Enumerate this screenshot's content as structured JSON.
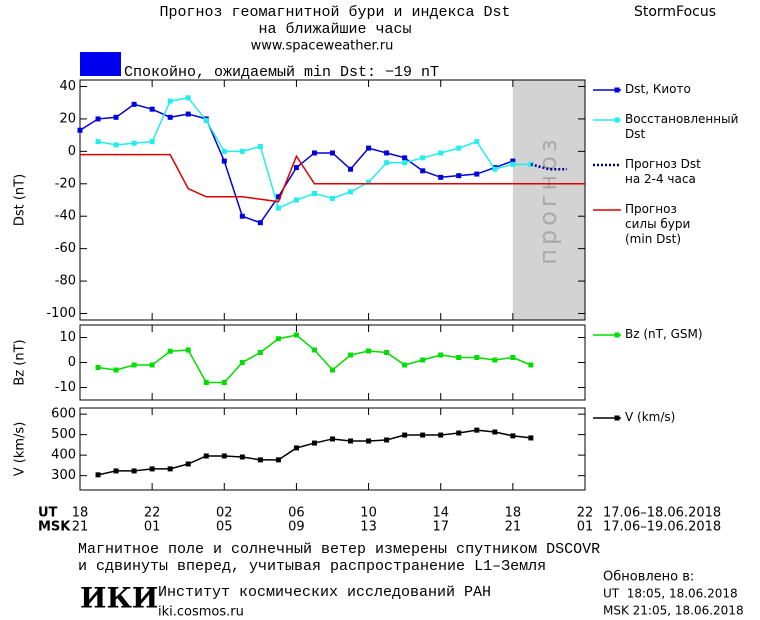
{
  "header": {
    "title": [
      "Прогноз геомагнитной бури и индекса Dst",
      "на ближайшие часы"
    ],
    "url": "www.spaceweather.ru",
    "brand": "StormFocus"
  },
  "status": {
    "color": "#0000ee",
    "text": "Спокойно, ожидаемый min Dst: −19 nT"
  },
  "chart_data": [
    {
      "type": "line",
      "ylabel": "Dst (nT)",
      "xlim": [
        18,
        46
      ],
      "ylim": [
        -104,
        44
      ],
      "yticks": [
        40,
        20,
        0,
        -20,
        -40,
        -60,
        -80,
        -100
      ],
      "legend": "right",
      "shaded_region": {
        "xlim": [
          42,
          46
        ],
        "label": "прогноз",
        "color": "#d3d3d3"
      },
      "series": [
        {
          "name": "Dst, Киото",
          "color": "#0000dd",
          "marker": "square",
          "dash": false,
          "x": [
            18,
            19,
            20,
            21,
            22,
            23,
            24,
            25,
            26,
            27,
            28,
            29,
            30,
            31,
            32,
            33,
            34,
            35,
            36,
            37,
            38,
            39,
            40,
            41,
            42
          ],
          "values": [
            13,
            20,
            21,
            29,
            26,
            21,
            23,
            20,
            -6,
            -40,
            -44,
            -28,
            -10,
            -1,
            -1,
            -11,
            2,
            -1,
            -4,
            -12,
            -16,
            -15,
            -14,
            -10,
            -6
          ]
        },
        {
          "name": "Восстановленный\nDst",
          "color": "#22eeee",
          "marker": "square",
          "dash": false,
          "x": [
            19,
            20,
            21,
            22,
            23,
            24,
            25,
            26,
            27,
            28,
            29,
            30,
            31,
            32,
            33,
            34,
            35,
            36,
            37,
            38,
            39,
            40,
            41,
            42,
            43
          ],
          "values": [
            6,
            4,
            5,
            6,
            31,
            33,
            19,
            0,
            0,
            3,
            -35,
            -30,
            -26,
            -29,
            -25,
            -19,
            -7,
            -7,
            -4,
            -1,
            2,
            6,
            -11,
            -8,
            -8
          ]
        },
        {
          "name": "Прогноз Dst\nна 2-4 часа",
          "color": "#000099",
          "marker": "none",
          "dash": true,
          "x": [
            43,
            44,
            45
          ],
          "values": [
            -8,
            -11,
            -11
          ]
        },
        {
          "name": "Прогноз\nсилы бури\n(min Dst)",
          "color": "#dd0000",
          "marker": "none",
          "dash": false,
          "x": [
            18,
            23,
            24,
            25,
            27,
            29,
            30,
            31,
            46
          ],
          "values": [
            -2,
            -2,
            -23,
            -28,
            -28,
            -31,
            -3,
            -20,
            -20
          ]
        }
      ]
    },
    {
      "type": "line",
      "ylabel": "Bz (nT)",
      "xlim": [
        18,
        46
      ],
      "ylim": [
        -15,
        15
      ],
      "yticks": [
        10,
        0,
        -10
      ],
      "legend": "right",
      "series": [
        {
          "name": "Bz (nT, GSM)",
          "color": "#00dd00",
          "marker": "square",
          "dash": false,
          "x": [
            19,
            20,
            21,
            22,
            23,
            24,
            25,
            26,
            27,
            28,
            29,
            30,
            31,
            32,
            33,
            34,
            35,
            36,
            37,
            38,
            39,
            40,
            41,
            42,
            43
          ],
          "values": [
            -2,
            -3,
            -1,
            -1,
            4.5,
            5,
            -8,
            -8,
            0,
            4,
            9.5,
            11,
            5,
            -3,
            3,
            4.6,
            4,
            -1,
            1,
            3,
            2,
            2,
            1,
            2,
            -1
          ]
        }
      ]
    },
    {
      "type": "line",
      "ylabel": "V (km/s)",
      "xlim": [
        18,
        46
      ],
      "ylim": [
        230,
        630
      ],
      "yticks": [
        600,
        500,
        400,
        300
      ],
      "legend": "right",
      "xticks": [
        18,
        22,
        {
          "value": 26,
          "label": "02"
        },
        {
          "value": 30,
          "label": "06"
        },
        {
          "value": 34,
          "label": "10"
        },
        {
          "value": 38,
          "label": "14"
        },
        {
          "value": 42,
          "label": "18"
        },
        {
          "value": 46,
          "label": "22"
        }
      ],
      "xticks_msk": [
        {
          "value": 18,
          "label": "21"
        },
        {
          "value": 22,
          "label": "01"
        },
        {
          "value": 26,
          "label": "05"
        },
        {
          "value": 30,
          "label": "09"
        },
        {
          "value": 34,
          "label": "13"
        },
        {
          "value": 38,
          "label": "17"
        },
        {
          "value": 42,
          "label": "21"
        },
        {
          "value": 46,
          "label": "01"
        }
      ],
      "xlabel": "UT",
      "xlabel_msk": "MSK",
      "date_range": "17.06–18.06.2018",
      "date_range_msk": "17.06–19.06.2018",
      "series": [
        {
          "name": "V (km/s)",
          "color": "#000000",
          "marker": "square",
          "dash": false,
          "x": [
            19,
            20,
            21,
            22,
            23,
            24,
            25,
            26,
            27,
            28,
            29,
            30,
            31,
            32,
            33,
            34,
            35,
            36,
            37,
            38,
            39,
            40,
            41,
            42,
            43
          ],
          "values": [
            304,
            323,
            323,
            333,
            333,
            357,
            396,
            396,
            391,
            377,
            377,
            435,
            459,
            479,
            469,
            469,
            474,
            498,
            498,
            498,
            508,
            522,
            513,
            494,
            484
          ]
        }
      ]
    }
  ],
  "footer": {
    "note": [
      "Магнитное поле и солнечный ветер измерены спутником DSCOVR",
      "и сдвинуты вперед, учитывая распространение L1–Земля"
    ],
    "institute": {
      "logo": "ИКИ",
      "name": "Институт космических исследований РАН",
      "url": "iki.cosmos.ru"
    },
    "updated": {
      "label": "Обновлено в:",
      "ut": "UT  18:05, 18.06.2018",
      "msk": "MSK 21:05, 18.06.2018"
    }
  }
}
